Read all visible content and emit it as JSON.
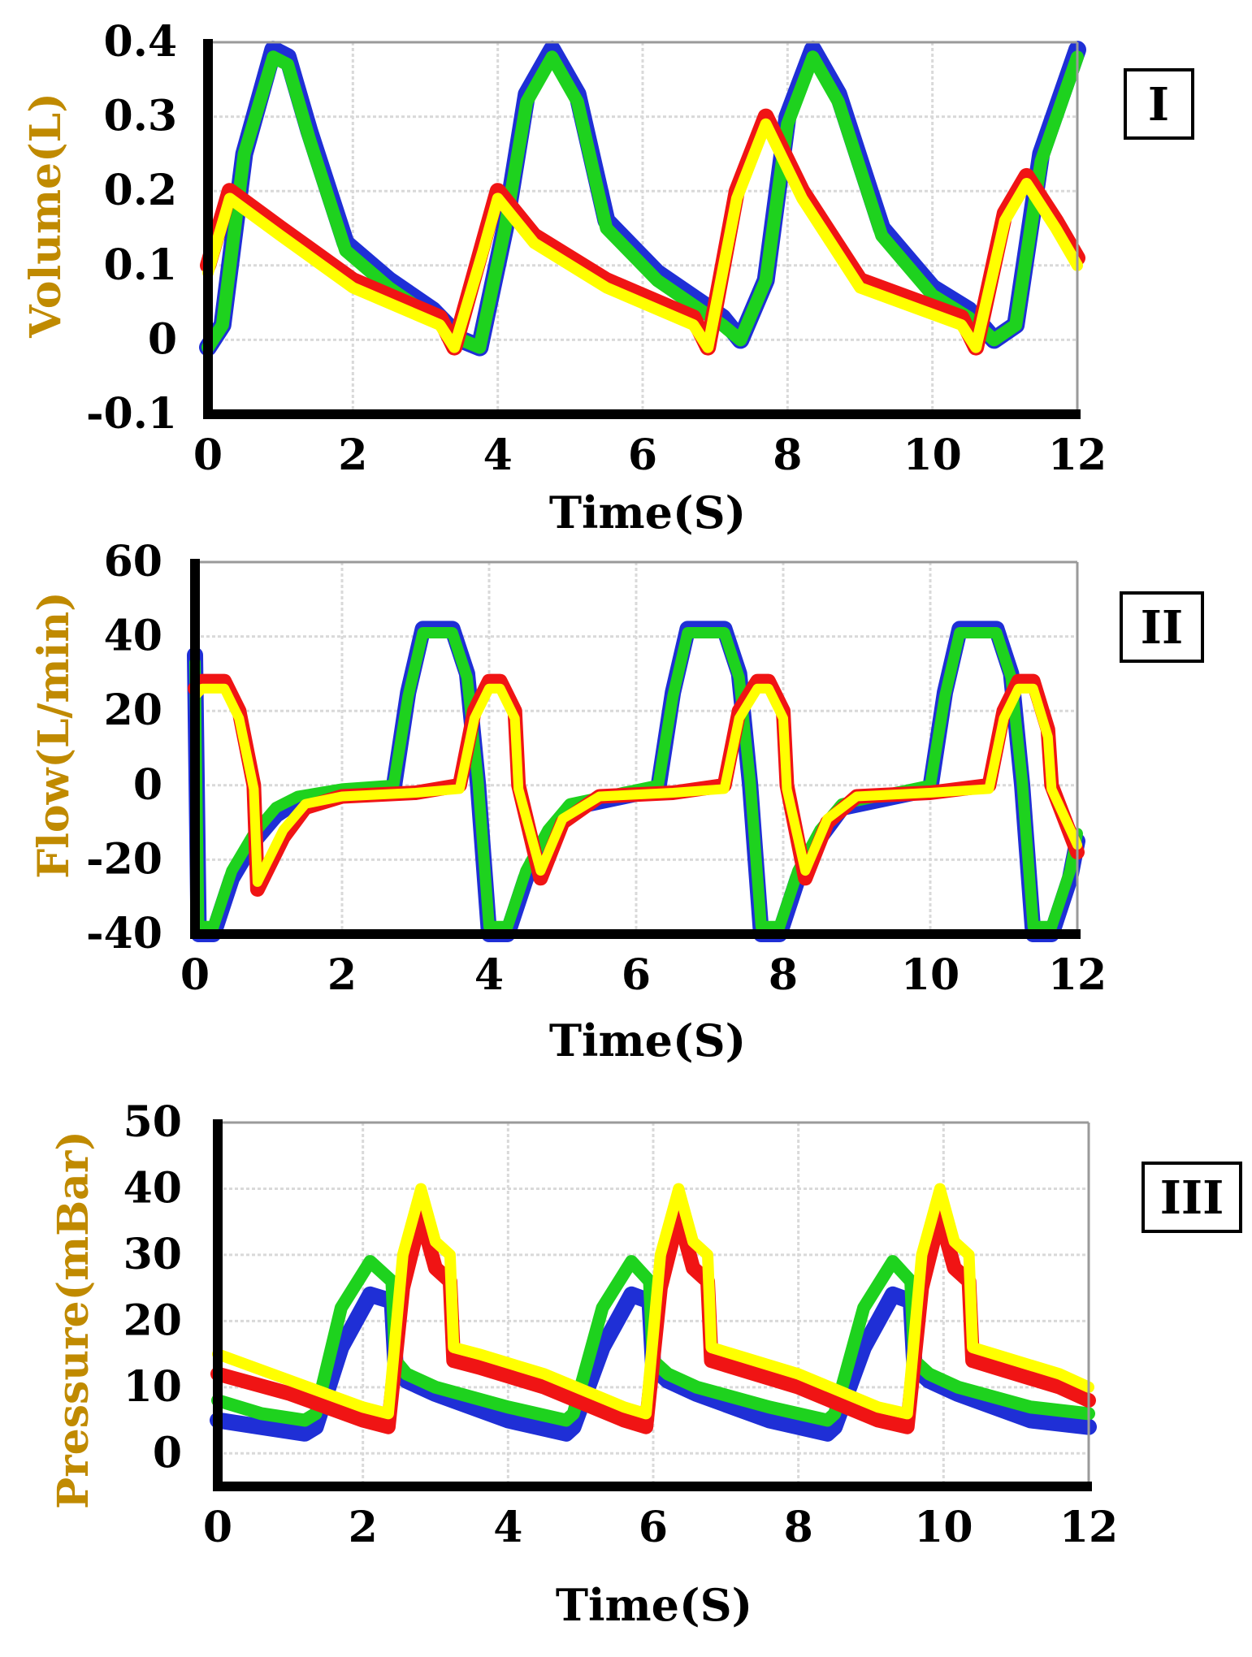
{
  "colors": {
    "blue": "#1f2fd6",
    "green": "#1ed21e",
    "red": "#f01414",
    "yellow": "#ffff00",
    "axis": "#000000",
    "grid": "#d9d9d9",
    "ylabel": "#c08a00"
  },
  "chart_data": [
    {
      "type": "line",
      "panel": "I",
      "xlabel": "Time(S)",
      "ylabel": "Volume(L)",
      "xlim": [
        0,
        12
      ],
      "ylim": [
        -0.1,
        0.4
      ],
      "xticks": [
        0,
        2,
        4,
        6,
        8,
        10,
        12
      ],
      "yticks": [
        -0.1,
        0,
        0.1,
        0.2,
        0.3,
        0.4
      ],
      "ytick_labels": [
        "-0.1",
        "0",
        "0.1",
        "0.2",
        "0.3",
        "0.4"
      ],
      "grid": true,
      "series": [
        {
          "name": "blue",
          "color": "blue",
          "width": 22,
          "x": [
            0,
            0.2,
            0.5,
            0.9,
            1.1,
            1.4,
            1.9,
            2.5,
            3.1,
            3.5,
            3.75,
            4.1,
            4.4,
            4.75,
            5.1,
            5.5,
            6.2,
            6.8,
            7.1,
            7.35,
            7.7,
            8.0,
            8.35,
            8.7,
            9.3,
            10.0,
            10.5,
            10.85,
            11.15,
            11.5,
            12.0
          ],
          "y": [
            -0.01,
            0.02,
            0.25,
            0.39,
            0.38,
            0.28,
            0.13,
            0.08,
            0.04,
            0.0,
            -0.01,
            0.15,
            0.33,
            0.39,
            0.33,
            0.16,
            0.09,
            0.05,
            0.03,
            0.0,
            0.08,
            0.3,
            0.39,
            0.33,
            0.15,
            0.07,
            0.04,
            0.0,
            0.02,
            0.25,
            0.39
          ]
        },
        {
          "name": "green",
          "color": "green",
          "width": 16,
          "x": [
            0,
            0.2,
            0.5,
            0.9,
            1.1,
            1.4,
            1.9,
            2.5,
            3.1,
            3.5,
            3.75,
            4.1,
            4.4,
            4.75,
            5.1,
            5.5,
            6.2,
            6.8,
            7.1,
            7.35,
            7.7,
            8.0,
            8.35,
            8.7,
            9.3,
            10.0,
            10.5,
            10.85,
            11.15,
            11.5,
            12.0
          ],
          "y": [
            -0.01,
            0.02,
            0.25,
            0.38,
            0.37,
            0.27,
            0.12,
            0.07,
            0.03,
            0.0,
            -0.01,
            0.15,
            0.32,
            0.38,
            0.32,
            0.15,
            0.08,
            0.04,
            0.02,
            0.0,
            0.08,
            0.29,
            0.38,
            0.32,
            0.14,
            0.06,
            0.03,
            0.0,
            0.02,
            0.24,
            0.38
          ]
        },
        {
          "name": "red",
          "color": "red",
          "width": 20,
          "x": [
            0,
            0.3,
            1.0,
            2.0,
            3.2,
            3.4,
            3.8,
            4.0,
            4.5,
            5.5,
            6.7,
            6.9,
            7.3,
            7.7,
            8.2,
            9.0,
            10.4,
            10.6,
            11.0,
            11.3,
            11.7,
            12.0
          ],
          "y": [
            0.1,
            0.2,
            0.15,
            0.08,
            0.03,
            -0.01,
            0.13,
            0.2,
            0.14,
            0.08,
            0.03,
            -0.01,
            0.2,
            0.3,
            0.2,
            0.08,
            0.03,
            -0.01,
            0.17,
            0.22,
            0.16,
            0.11
          ]
        },
        {
          "name": "yellow",
          "color": "yellow",
          "width": 14,
          "x": [
            0,
            0.3,
            1.0,
            2.0,
            3.2,
            3.4,
            3.8,
            4.0,
            4.5,
            5.5,
            6.7,
            6.9,
            7.3,
            7.7,
            8.2,
            9.0,
            10.4,
            10.6,
            11.0,
            11.3,
            11.7,
            12.0
          ],
          "y": [
            0.09,
            0.19,
            0.14,
            0.07,
            0.02,
            -0.01,
            0.12,
            0.19,
            0.13,
            0.07,
            0.02,
            -0.01,
            0.19,
            0.29,
            0.19,
            0.07,
            0.02,
            -0.01,
            0.16,
            0.21,
            0.15,
            0.1
          ]
        }
      ]
    },
    {
      "type": "line",
      "panel": "II",
      "xlabel": "Time(S)",
      "ylabel": "Flow(L/min)",
      "xlim": [
        0,
        12
      ],
      "ylim": [
        -40,
        60
      ],
      "xticks": [
        0,
        2,
        4,
        6,
        8,
        10,
        12
      ],
      "yticks": [
        -40,
        -20,
        0,
        20,
        40,
        60
      ],
      "ytick_labels": [
        "-40",
        "-20",
        "0",
        "20",
        "40",
        "60"
      ],
      "grid": true,
      "series": [
        {
          "name": "blue",
          "color": "blue",
          "width": 20,
          "x": [
            0,
            0.05,
            0.25,
            0.5,
            0.8,
            1.1,
            1.4,
            2.0,
            2.7,
            2.9,
            3.1,
            3.5,
            3.7,
            3.85,
            4.0,
            4.25,
            4.5,
            4.8,
            5.1,
            6.3,
            6.5,
            6.7,
            7.2,
            7.4,
            7.55,
            7.7,
            7.95,
            8.2,
            8.5,
            8.8,
            10.0,
            10.2,
            10.4,
            10.9,
            11.1,
            11.25,
            11.4,
            11.65,
            11.9,
            12.0
          ],
          "y": [
            35,
            -40,
            -40,
            -25,
            -15,
            -8,
            -4,
            -2,
            -1,
            25,
            42,
            42,
            30,
            0,
            -40,
            -40,
            -25,
            -14,
            -6,
            -1,
            25,
            42,
            42,
            30,
            0,
            -40,
            -40,
            -25,
            -14,
            -6,
            -1,
            25,
            42,
            42,
            30,
            0,
            -40,
            -40,
            -25,
            -15
          ]
        },
        {
          "name": "green",
          "color": "green",
          "width": 14,
          "x": [
            0,
            0.05,
            0.25,
            0.5,
            0.8,
            1.1,
            1.4,
            2.0,
            2.7,
            2.9,
            3.1,
            3.5,
            3.7,
            3.85,
            4.0,
            4.25,
            4.5,
            4.8,
            5.1,
            6.3,
            6.5,
            6.7,
            7.2,
            7.4,
            7.55,
            7.7,
            7.95,
            8.2,
            8.5,
            8.8,
            10.0,
            10.2,
            10.4,
            10.9,
            11.1,
            11.25,
            11.4,
            11.65,
            11.9,
            12.0
          ],
          "y": [
            33,
            -38,
            -38,
            -23,
            -13,
            -6,
            -3,
            -1,
            0,
            24,
            41,
            41,
            29,
            1,
            -38,
            -38,
            -23,
            -12,
            -5,
            0,
            24,
            41,
            41,
            29,
            1,
            -38,
            -38,
            -23,
            -12,
            -5,
            0,
            24,
            41,
            41,
            29,
            1,
            -38,
            -38,
            -23,
            -13
          ]
        },
        {
          "name": "red",
          "color": "red",
          "width": 18,
          "x": [
            0,
            0.1,
            0.4,
            0.6,
            0.8,
            0.85,
            1.2,
            1.5,
            2.0,
            3.0,
            3.6,
            3.8,
            4.0,
            4.15,
            4.35,
            4.4,
            4.7,
            5.0,
            5.5,
            6.5,
            7.2,
            7.4,
            7.65,
            7.8,
            8.0,
            8.05,
            8.3,
            8.6,
            9.0,
            10.0,
            10.8,
            11.0,
            11.2,
            11.4,
            11.6,
            11.65,
            12.0
          ],
          "y": [
            26,
            28,
            28,
            20,
            0,
            -28,
            -14,
            -6,
            -3,
            -2,
            0,
            20,
            28,
            28,
            20,
            0,
            -25,
            -10,
            -3,
            -2,
            0,
            20,
            28,
            28,
            20,
            0,
            -25,
            -10,
            -3,
            -2,
            0,
            20,
            28,
            28,
            15,
            0,
            -18
          ]
        },
        {
          "name": "yellow",
          "color": "yellow",
          "width": 12,
          "x": [
            0,
            0.1,
            0.4,
            0.6,
            0.8,
            0.85,
            1.2,
            1.5,
            2.0,
            3.0,
            3.6,
            3.8,
            4.0,
            4.15,
            4.35,
            4.4,
            4.7,
            5.0,
            5.5,
            6.5,
            7.2,
            7.4,
            7.65,
            7.8,
            8.0,
            8.05,
            8.3,
            8.6,
            9.0,
            10.0,
            10.8,
            11.0,
            11.2,
            11.4,
            11.6,
            11.65,
            12.0
          ],
          "y": [
            24,
            26,
            26,
            18,
            -1,
            -26,
            -12,
            -5,
            -3,
            -2,
            -1,
            18,
            26,
            26,
            18,
            -1,
            -23,
            -9,
            -3,
            -2,
            -1,
            18,
            26,
            26,
            18,
            -1,
            -23,
            -9,
            -3,
            -2,
            -1,
            18,
            26,
            26,
            13,
            -1,
            -16
          ]
        }
      ]
    },
    {
      "type": "line",
      "panel": "III",
      "xlabel": "Time(S)",
      "ylabel": "Pressure(mBar)",
      "xlim": [
        0,
        12
      ],
      "ylim": [
        -5,
        50
      ],
      "xticks": [
        0,
        2,
        4,
        6,
        8,
        10,
        12
      ],
      "yticks": [
        0,
        10,
        20,
        30,
        40,
        50
      ],
      "ytick_labels": [
        "0",
        "10",
        "20",
        "30",
        "40",
        "50"
      ],
      "grid": true,
      "series": [
        {
          "name": "blue",
          "color": "blue",
          "width": 20,
          "x": [
            0,
            0.6,
            1.2,
            1.35,
            1.7,
            2.1,
            2.4,
            2.45,
            2.6,
            3.0,
            4.0,
            4.8,
            4.9,
            5.3,
            5.7,
            5.95,
            6.0,
            6.2,
            6.6,
            7.6,
            8.4,
            8.5,
            8.9,
            9.3,
            9.55,
            9.6,
            9.8,
            10.2,
            11.2,
            12.0
          ],
          "y": [
            5,
            4,
            3,
            4,
            16,
            24,
            23,
            13,
            11,
            9,
            5,
            3,
            4,
            16,
            24,
            23,
            13,
            11,
            9,
            5,
            3,
            4,
            16,
            24,
            23,
            13,
            11,
            9,
            5,
            4
          ]
        },
        {
          "name": "green",
          "color": "green",
          "width": 16,
          "x": [
            0,
            0.6,
            1.2,
            1.35,
            1.7,
            2.1,
            2.4,
            2.45,
            2.6,
            3.0,
            4.0,
            4.8,
            4.9,
            5.3,
            5.7,
            5.95,
            6.0,
            6.2,
            6.6,
            7.6,
            8.4,
            8.5,
            8.9,
            9.3,
            9.55,
            9.6,
            9.8,
            10.2,
            11.2,
            12.0
          ],
          "y": [
            8,
            6,
            5,
            6,
            22,
            29,
            26,
            14,
            12,
            10,
            7,
            5,
            6,
            22,
            29,
            26,
            14,
            12,
            10,
            7,
            5,
            6,
            22,
            29,
            26,
            14,
            12,
            10,
            7,
            6
          ]
        },
        {
          "name": "red",
          "color": "red",
          "width": 18,
          "x": [
            0,
            1.0,
            2.0,
            2.35,
            2.55,
            2.8,
            3.0,
            3.2,
            3.25,
            3.6,
            4.5,
            5.6,
            5.9,
            6.1,
            6.35,
            6.55,
            6.75,
            6.8,
            7.1,
            8.0,
            9.1,
            9.5,
            9.7,
            9.95,
            10.15,
            10.35,
            10.4,
            10.7,
            11.6,
            12.0
          ],
          "y": [
            12,
            9,
            5,
            4,
            25,
            36,
            28,
            26,
            14,
            13,
            10,
            5,
            4,
            25,
            36,
            28,
            26,
            14,
            13,
            10,
            5,
            4,
            25,
            36,
            28,
            26,
            14,
            13,
            10,
            8
          ]
        },
        {
          "name": "yellow",
          "color": "yellow",
          "width": 14,
          "x": [
            0,
            1.0,
            2.0,
            2.35,
            2.55,
            2.8,
            3.0,
            3.2,
            3.25,
            3.6,
            4.5,
            5.6,
            5.9,
            6.1,
            6.35,
            6.55,
            6.75,
            6.8,
            7.1,
            8.0,
            9.1,
            9.5,
            9.7,
            9.95,
            10.15,
            10.35,
            10.4,
            10.7,
            11.6,
            12.0
          ],
          "y": [
            15,
            11,
            7,
            6,
            30,
            40,
            32,
            30,
            16,
            15,
            12,
            7,
            6,
            30,
            40,
            32,
            30,
            16,
            15,
            12,
            7,
            6,
            30,
            40,
            32,
            30,
            16,
            15,
            12,
            10
          ]
        }
      ]
    }
  ]
}
